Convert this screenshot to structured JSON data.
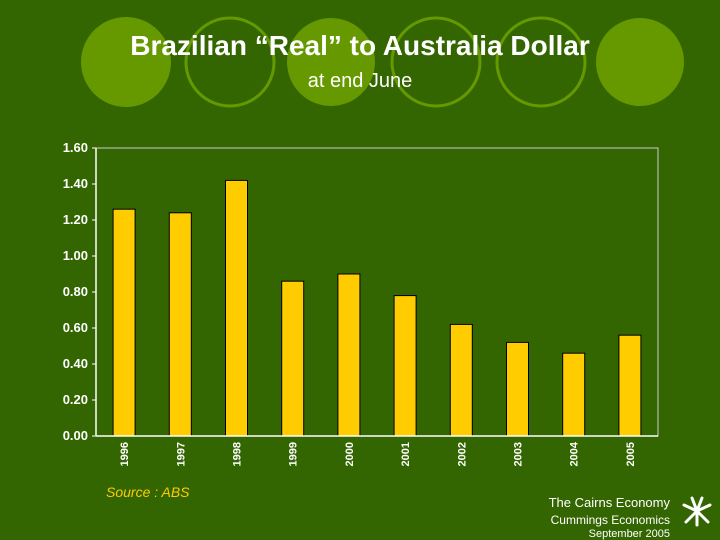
{
  "header": {
    "title": "Brazilian “Real” to Australia Dollar",
    "subtitle": "at end June"
  },
  "chart_data": {
    "type": "bar",
    "categories": [
      "1996",
      "1997",
      "1998",
      "1999",
      "2000",
      "2001",
      "2002",
      "2003",
      "2004",
      "2005"
    ],
    "values": [
      1.26,
      1.24,
      1.42,
      0.86,
      0.9,
      0.78,
      0.62,
      0.52,
      0.46,
      0.56
    ],
    "y_ticks": [
      "0.00",
      "0.20",
      "0.40",
      "0.60",
      "0.80",
      "1.00",
      "1.20",
      "1.40",
      "1.60"
    ],
    "ylim": [
      0,
      1.6
    ],
    "grid": false,
    "colors": {
      "bar": "#ffcc00",
      "plot_bg": "#336600",
      "axis": "#ffffff"
    }
  },
  "footer": {
    "source": "Source : ABS",
    "title": "The Cairns Economy",
    "author": "Cummings Economics",
    "date": "September 2005"
  },
  "colors": {
    "background": "#336600",
    "decor_circle": "#669900",
    "accent": "#ffcc00"
  }
}
